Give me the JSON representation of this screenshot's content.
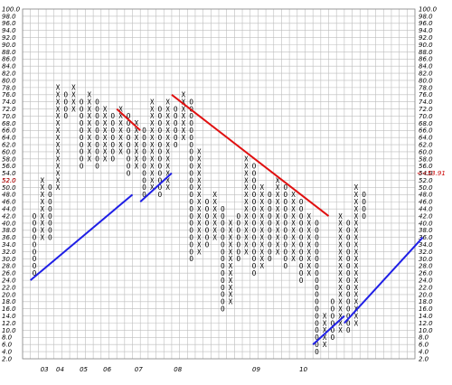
{
  "chart_data": {
    "type": "point-and-figure",
    "title": "",
    "xlabel": "",
    "ylabel": "",
    "ylim": [
      2,
      100
    ],
    "box_size": 2,
    "ytick_step": 2,
    "num_columns": 43,
    "price_label_left": "52.0",
    "price_label_right": "<<53.91",
    "year_labels": [
      {
        "label": "03",
        "col": 1
      },
      {
        "label": "04",
        "col": 3
      },
      {
        "label": "05",
        "col": 6
      },
      {
        "label": "06",
        "col": 9
      },
      {
        "label": "07",
        "col": 13
      },
      {
        "label": "08",
        "col": 18
      },
      {
        "label": "09",
        "col": 28
      },
      {
        "label": "10",
        "col": 34
      }
    ],
    "columns": [
      {
        "type": "O",
        "low": 26,
        "high": 42
      },
      {
        "type": "X",
        "low": 36,
        "high": 52
      },
      {
        "type": "O",
        "low": 36,
        "high": 50
      },
      {
        "type": "X",
        "low": 50,
        "high": 78
      },
      {
        "type": "O",
        "low": 70,
        "high": 76
      },
      {
        "type": "X",
        "low": 72,
        "high": 78
      },
      {
        "type": "O",
        "low": 56,
        "high": 74
      },
      {
        "type": "X",
        "low": 58,
        "high": 76
      },
      {
        "type": "O",
        "low": 56,
        "high": 74
      },
      {
        "type": "X",
        "low": 58,
        "high": 72
      },
      {
        "type": "O",
        "low": 58,
        "high": 70
      },
      {
        "type": "X",
        "low": 60,
        "high": 72
      },
      {
        "type": "O",
        "low": 54,
        "high": 70
      },
      {
        "type": "X",
        "low": 56,
        "high": 68
      },
      {
        "type": "O",
        "low": 48,
        "high": 66
      },
      {
        "type": "X",
        "low": 50,
        "high": 74
      },
      {
        "type": "O",
        "low": 48,
        "high": 72
      },
      {
        "type": "X",
        "low": 50,
        "high": 74
      },
      {
        "type": "O",
        "low": 62,
        "high": 72
      },
      {
        "type": "X",
        "low": 64,
        "high": 76
      },
      {
        "type": "O",
        "low": 30,
        "high": 74
      },
      {
        "type": "X",
        "low": 32,
        "high": 60
      },
      {
        "type": "O",
        "low": 34,
        "high": 46
      },
      {
        "type": "X",
        "low": 36,
        "high": 48
      },
      {
        "type": "O",
        "low": 16,
        "high": 44
      },
      {
        "type": "X",
        "low": 18,
        "high": 40
      },
      {
        "type": "O",
        "low": 30,
        "high": 42
      },
      {
        "type": "X",
        "low": 32,
        "high": 58
      },
      {
        "type": "O",
        "low": 26,
        "high": 56
      },
      {
        "type": "X",
        "low": 28,
        "high": 50
      },
      {
        "type": "O",
        "low": 30,
        "high": 48
      },
      {
        "type": "X",
        "low": 32,
        "high": 52
      },
      {
        "type": "O",
        "low": 28,
        "high": 50
      },
      {
        "type": "X",
        "low": 30,
        "high": 48
      },
      {
        "type": "O",
        "low": 24,
        "high": 46
      },
      {
        "type": "X",
        "low": 26,
        "high": 42
      },
      {
        "type": "O",
        "low": 4,
        "high": 40
      },
      {
        "type": "X",
        "low": 6,
        "high": 14
      },
      {
        "type": "O",
        "low": 8,
        "high": 18
      },
      {
        "type": "X",
        "low": 10,
        "high": 42
      },
      {
        "type": "O",
        "low": 10,
        "high": 40
      },
      {
        "type": "X",
        "low": 12,
        "high": 50
      },
      {
        "type": "O",
        "low": 42,
        "high": 48
      }
    ],
    "trend_lines": [
      {
        "color": "blue",
        "from": {
          "col": 0,
          "price": 24
        },
        "to": {
          "col": 13,
          "price": 48
        }
      },
      {
        "color": "blue",
        "from": {
          "col": 14,
          "price": 46
        },
        "to": {
          "col": 18,
          "price": 54
        }
      },
      {
        "color": "blue",
        "from": {
          "col": 36,
          "price": 6
        },
        "to": {
          "col": 40,
          "price": 14
        }
      },
      {
        "color": "blue",
        "from": {
          "col": 40,
          "price": 12
        },
        "to": {
          "col": 50,
          "price": 36
        }
      },
      {
        "color": "red",
        "from": {
          "col": 11,
          "price": 72
        },
        "to": {
          "col": 14,
          "price": 66
        }
      },
      {
        "color": "red",
        "from": {
          "col": 18,
          "price": 76
        },
        "to": {
          "col": 38,
          "price": 42
        }
      }
    ]
  },
  "colors": {
    "grid": "#bdbdbd",
    "mark": "#000000",
    "month_mark": "#cc0000",
    "trend_up": "#1f1fe6",
    "trend_down": "#e01010"
  }
}
